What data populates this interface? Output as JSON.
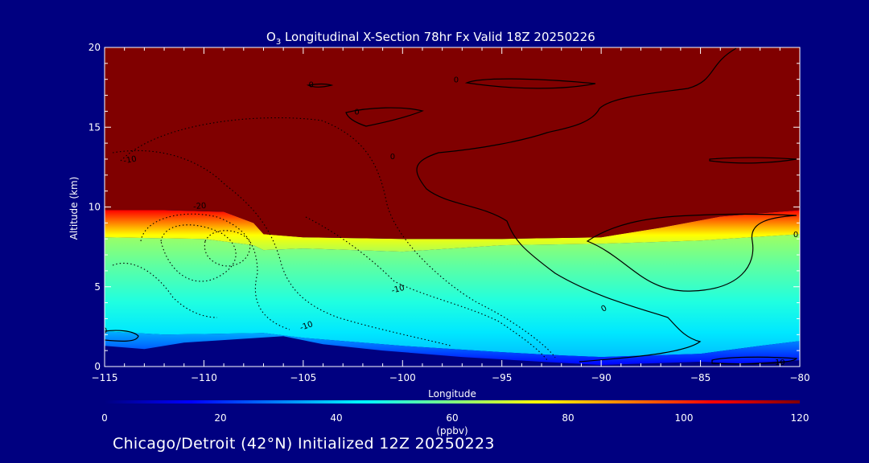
{
  "chart_data": {
    "type": "heatmap",
    "title_species": "O",
    "title_subscript": "3",
    "title_rest": " Longitudinal X-Section 78hr  Fx Valid 18Z 20250226",
    "xlabel": "Longitude",
    "ylabel": "Altitude (km)",
    "xlim": [
      -115,
      -80
    ],
    "ylim": [
      0,
      20
    ],
    "x_ticks": [
      -115,
      -110,
      -105,
      -100,
      -95,
      -90,
      -85,
      -80
    ],
    "x_tick_labels": [
      "−115",
      "−110",
      "−105",
      "−100",
      "−95",
      "−90",
      "−85",
      "−80"
    ],
    "y_ticks": [
      0,
      5,
      10,
      15,
      20
    ],
    "y_tick_labels": [
      "0",
      "5",
      "10",
      "15",
      "20"
    ],
    "colorbar": {
      "min": 0,
      "max": 120,
      "ticks": [
        0,
        20,
        40,
        60,
        80,
        100,
        120
      ],
      "tick_labels": [
        "0",
        "20",
        "40",
        "60",
        "80",
        "100",
        "120"
      ],
      "label": "(ppbv)",
      "colors": [
        "#000080",
        "#0000ff",
        "#0080ff",
        "#00ffff",
        "#80ff80",
        "#ffff00",
        "#ff8000",
        "#ff0000",
        "#800000"
      ]
    },
    "ozone_surface": {
      "tropopause_top_km": [
        [
          -115,
          9.8
        ],
        [
          -112,
          9.8
        ],
        [
          -109,
          9.7
        ],
        [
          -107.5,
          9.0
        ],
        [
          -107,
          8.3
        ],
        [
          -105,
          8.1
        ],
        [
          -100,
          8.0
        ],
        [
          -95,
          8.0
        ],
        [
          -90,
          8.1
        ],
        [
          -87,
          8.7
        ],
        [
          -84,
          9.4
        ],
        [
          -80,
          9.8
        ]
      ],
      "tropopause_bottom_km": [
        [
          -115,
          8.1
        ],
        [
          -110,
          8.0
        ],
        [
          -107.5,
          7.6
        ],
        [
          -107,
          7.3
        ],
        [
          -105,
          7.4
        ],
        [
          -100,
          7.2
        ],
        [
          -95,
          7.6
        ],
        [
          -90,
          7.7
        ],
        [
          -85,
          7.9
        ],
        [
          -80,
          8.3
        ]
      ],
      "boundary_layer_top_km": [
        [
          -115,
          2.2
        ],
        [
          -112,
          2.0
        ],
        [
          -107,
          2.1
        ],
        [
          -105,
          1.8
        ],
        [
          -103,
          1.6
        ],
        [
          -100,
          1.3
        ],
        [
          -95,
          0.9
        ],
        [
          -92,
          0.7
        ],
        [
          -90,
          0.6
        ],
        [
          -85,
          0.8
        ],
        [
          -82,
          1.3
        ],
        [
          -80,
          1.6
        ]
      ],
      "boundary_layer_bottom_km": [
        [
          -115,
          1.3
        ],
        [
          -113,
          1.1
        ],
        [
          -111,
          1.5
        ],
        [
          -106,
          1.9
        ],
        [
          -104,
          1.4
        ],
        [
          -101,
          1.0
        ],
        [
          -97,
          0.6
        ],
        [
          -93,
          0.3
        ],
        [
          -90,
          0.1
        ],
        [
          -85,
          0.3
        ],
        [
          -83,
          0.2
        ],
        [
          -80,
          0.4
        ]
      ]
    },
    "contour_labels": [
      {
        "text": "0",
        "x": -104.6,
        "y": 17.5,
        "rotate": 0
      },
      {
        "text": "0",
        "x": -97.3,
        "y": 17.8,
        "rotate": 0
      },
      {
        "text": "0",
        "x": -102.3,
        "y": 15.8,
        "rotate": 0
      },
      {
        "text": "0",
        "x": -100.5,
        "y": 13.0,
        "rotate": 0
      },
      {
        "text": "-10",
        "x": -113.7,
        "y": 12.8,
        "rotate": -10
      },
      {
        "text": "-20",
        "x": -110.2,
        "y": 9.9,
        "rotate": -5
      },
      {
        "text": "-10",
        "x": -100.2,
        "y": 4.7,
        "rotate": -15
      },
      {
        "text": "-10",
        "x": -104.8,
        "y": 2.4,
        "rotate": -20
      },
      {
        "text": "0",
        "x": -115.0,
        "y": 2.1,
        "rotate": 0
      },
      {
        "text": "0",
        "x": -89.8,
        "y": 3.5,
        "rotate": -30
      },
      {
        "text": "0",
        "x": -80.2,
        "y": 8.1,
        "rotate": 0
      },
      {
        "text": "10",
        "x": -81.0,
        "y": 0.1,
        "rotate": 0
      }
    ]
  },
  "footer": "Chicago/Detroit (42°N) Initialized 12Z 20250223"
}
